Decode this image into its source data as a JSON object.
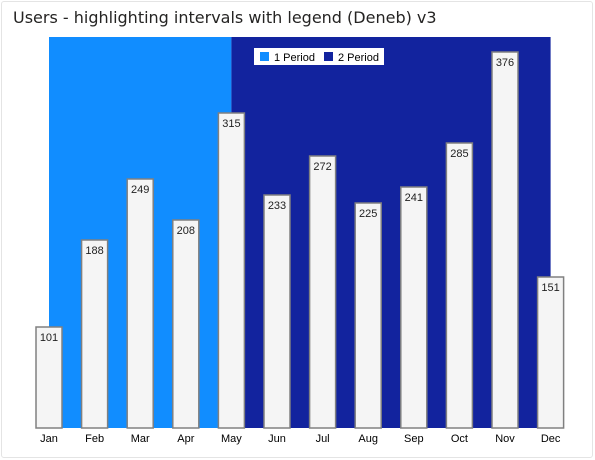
{
  "visual": {
    "title": "Users - highlighting intervals with legend (Deneb) v3"
  },
  "chart_data": {
    "type": "bar",
    "title": "Users - highlighting intervals with legend (Deneb) v3",
    "xlabel": "",
    "ylabel": "",
    "categories": [
      "Jan",
      "Feb",
      "Mar",
      "Apr",
      "May",
      "Jun",
      "Jul",
      "Aug",
      "Sep",
      "Oct",
      "Nov",
      "Dec"
    ],
    "values": [
      101,
      188,
      249,
      208,
      315,
      233,
      272,
      225,
      241,
      285,
      376,
      151
    ],
    "ylim": [
      0,
      400
    ],
    "grid": false,
    "legend": {
      "placement": "top",
      "entries": [
        {
          "label": "1 Period",
          "color": "#118dff"
        },
        {
          "label": "2 Period",
          "color": "#12239e"
        }
      ]
    },
    "intervals": [
      {
        "label": "1 Period",
        "from": "Jan",
        "to": "May",
        "color": "#118dff"
      },
      {
        "label": "2 Period",
        "from": "May",
        "to": "Dec",
        "color": "#12239e"
      }
    ],
    "bar_fill": "#f5f5f5",
    "bar_stroke": "#808080"
  }
}
